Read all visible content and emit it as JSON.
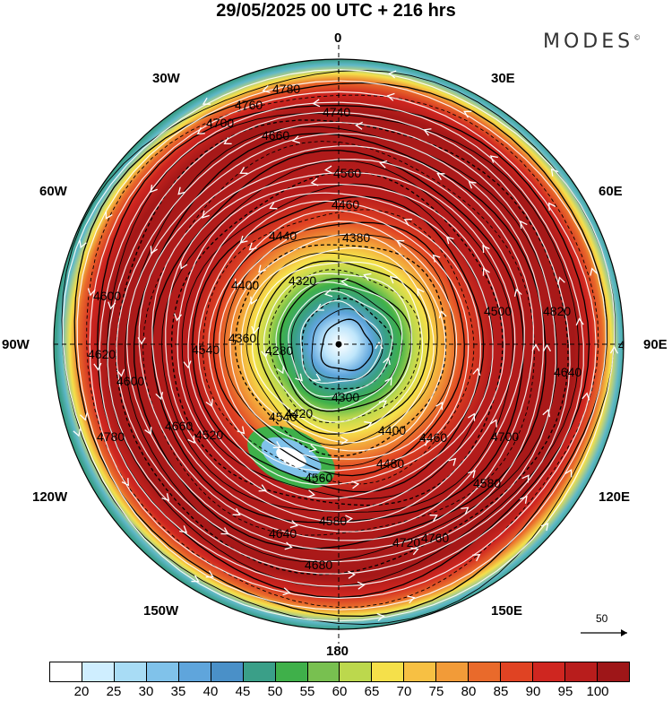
{
  "header": {
    "title": "29/05/2025  00 UTC  + 216 hrs",
    "brand": "MODES"
  },
  "map": {
    "meridian_labels": {
      "m0": "0",
      "m30e": "30E",
      "m60e": "60E",
      "m90e": "90E",
      "m120e": "120E",
      "m150e": "150E",
      "m180": "180",
      "m150w": "150W",
      "m120w": "120W",
      "m90w": "90W",
      "m60w": "60W",
      "m30w": "30W"
    },
    "contour_labels": [
      "4780",
      "4740",
      "4700",
      "4660",
      "4760",
      "4560",
      "4460",
      "4440",
      "4380",
      "4320",
      "4400",
      "4280",
      "4360",
      "4300",
      "4420",
      "4400",
      "4460",
      "4480",
      "4560",
      "4520",
      "4580",
      "4640",
      "4760",
      "4720",
      "4680",
      "4620",
      "4600",
      "4660",
      "4540",
      "4500",
      "4820",
      "4720",
      "4640",
      "4600",
      "4780",
      "4760",
      "4580",
      "4700",
      "4540"
    ],
    "wind_reference": "50"
  },
  "colorbar": {
    "colors": [
      "#ffffff",
      "#cfeeff",
      "#a8dcf5",
      "#80c2ea",
      "#5fa5dc",
      "#4a90c8",
      "#3a9f88",
      "#3fb04a",
      "#78c050",
      "#bcd84d",
      "#f5e04a",
      "#f7c043",
      "#f29b38",
      "#e96a2b",
      "#e04323",
      "#cf2620",
      "#b81d1c",
      "#9e1618"
    ],
    "labels": [
      "20",
      "25",
      "30",
      "35",
      "40",
      "45",
      "50",
      "55",
      "60",
      "65",
      "70",
      "75",
      "80",
      "85",
      "90",
      "95",
      "100"
    ]
  }
}
